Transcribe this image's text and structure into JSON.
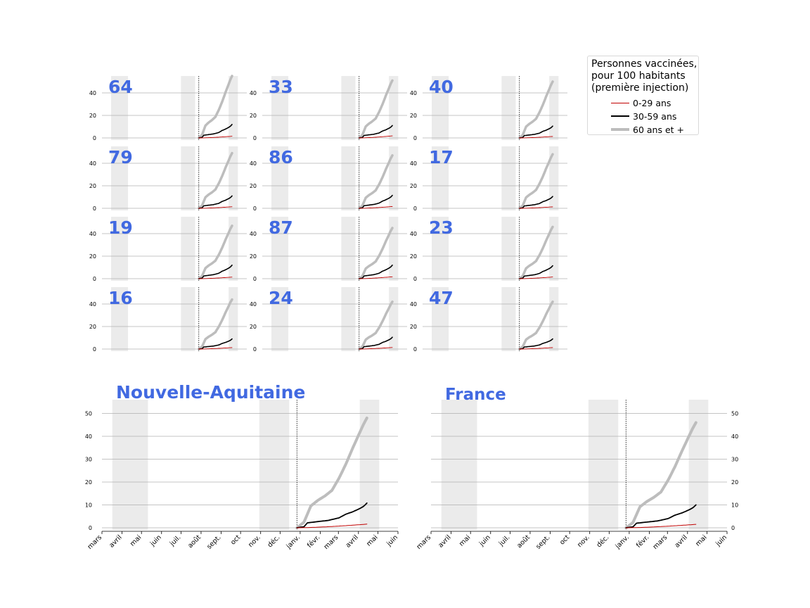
{
  "colors": {
    "young": "#c00000",
    "middle": "#000000",
    "senior": "#bdbdbd",
    "label": "#4169e1",
    "shade": "#ebebeb",
    "grid": "#b0b0b0"
  },
  "legend": {
    "title_lines": [
      "Personnes vaccinées,",
      "pour 100 habitants",
      "(première injection)"
    ],
    "items": [
      {
        "label": "0-29 ans",
        "series": "young"
      },
      {
        "label": "30-59 ans",
        "series": "middle"
      },
      {
        "label": "60 ans et +",
        "series": "senior"
      }
    ]
  },
  "chart_data": {
    "type": "line",
    "x_tick_labels": [
      "mars",
      "avril",
      "mai",
      "juin",
      "juil.",
      "août",
      "sept.",
      "oct",
      "nov.",
      "déc.",
      "janv.",
      "févr.",
      "mars",
      "avril",
      "mai",
      "juin"
    ],
    "x_range_months": [
      "2020-03",
      "2021-06"
    ],
    "vline": "2020-12-27",
    "shaded_periods": [
      [
        "2020-03-17",
        "2020-05-11"
      ],
      [
        "2020-10-30",
        "2020-12-15"
      ],
      [
        "2021-04-03",
        "2021-05-03"
      ]
    ],
    "date_range": [
      "2020-12-27",
      "2021-04-14"
    ],
    "small_multiples": {
      "ylim": [
        0,
        55
      ],
      "yticks": [
        0,
        20,
        40
      ],
      "panels": [
        {
          "label": "64",
          "senior": 55,
          "middle": 12,
          "young": 1.5
        },
        {
          "label": "33",
          "senior": 51,
          "middle": 11,
          "young": 1.8
        },
        {
          "label": "40",
          "senior": 50,
          "middle": 10.5,
          "young": 1.3
        },
        {
          "label": "79",
          "senior": 49,
          "middle": 11,
          "young": 1.4
        },
        {
          "label": "86",
          "senior": 47,
          "middle": 11.5,
          "young": 1.6
        },
        {
          "label": "17",
          "senior": 48,
          "middle": 10.5,
          "young": 1.3
        },
        {
          "label": "19",
          "senior": 47,
          "middle": 12,
          "young": 1.4
        },
        {
          "label": "87",
          "senior": 45,
          "middle": 12,
          "young": 1.7
        },
        {
          "label": "23",
          "senior": 46,
          "middle": 11.5,
          "young": 1.5
        },
        {
          "label": "16",
          "senior": 44,
          "middle": 9,
          "young": 1.3
        },
        {
          "label": "24",
          "senior": 42,
          "middle": 10.5,
          "young": 1.4
        },
        {
          "label": "47",
          "senior": 42,
          "middle": 9,
          "young": 1.3
        }
      ]
    },
    "large": {
      "ylim": [
        0,
        56
      ],
      "yticks": [
        0,
        10,
        20,
        30,
        40,
        50
      ],
      "panels": [
        {
          "label": "Nouvelle-Aquitaine",
          "senior": 48,
          "middle": 10.8,
          "young": 1.6
        },
        {
          "label": "France",
          "senior": 46,
          "middle": 10,
          "young": 1.5
        }
      ]
    }
  }
}
